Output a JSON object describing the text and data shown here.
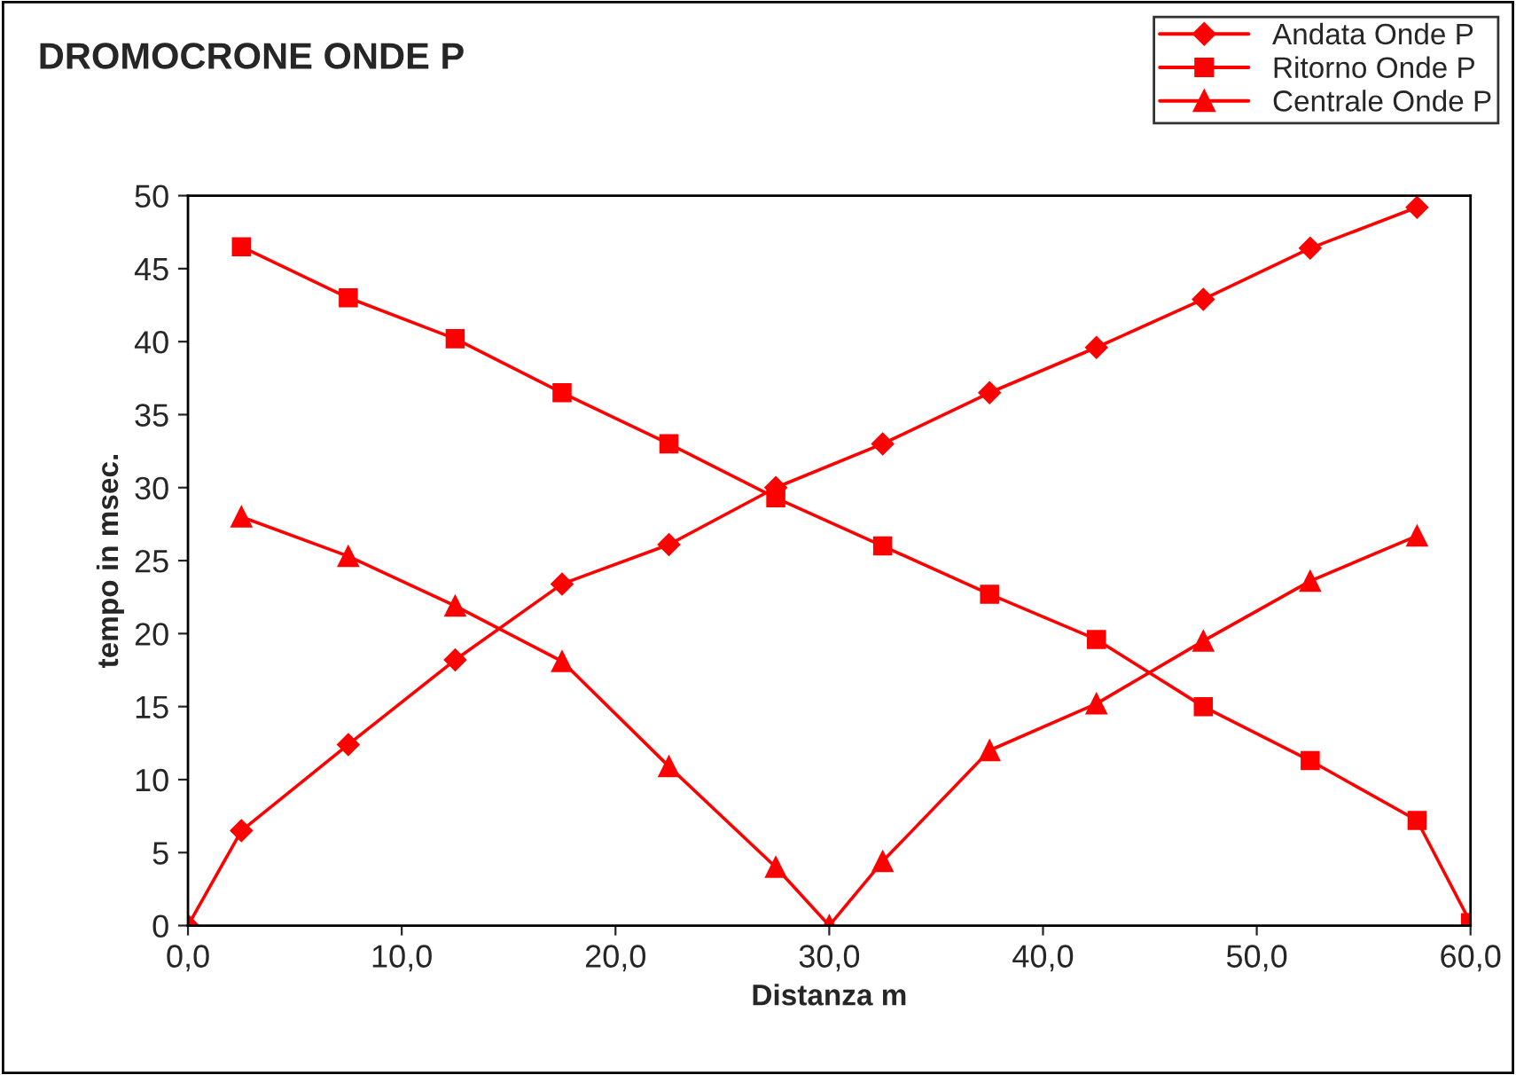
{
  "chart_data": {
    "type": "line",
    "title": "DROMOCRONE ONDE P",
    "xlabel": "Distanza m",
    "ylabel": "tempo in msec.",
    "xlim": [
      0,
      60
    ],
    "xticks": [
      {
        "value": 0,
        "label": "0,0"
      },
      {
        "value": 10,
        "label": "10,0"
      },
      {
        "value": 20,
        "label": "20,0"
      },
      {
        "value": 30,
        "label": "30,0"
      },
      {
        "value": 40,
        "label": "40,0"
      },
      {
        "value": 50,
        "label": "50,0"
      },
      {
        "value": 60,
        "label": "60,0"
      }
    ],
    "ylim": [
      0,
      50
    ],
    "yticks": [
      0,
      5,
      10,
      15,
      20,
      25,
      30,
      35,
      40,
      45,
      50
    ],
    "grid": false,
    "legend": "top right",
    "line_style": "solid",
    "series": [
      {
        "name": "Andata Onde P",
        "color": "#ff0000",
        "marker": "diamond",
        "x": [
          0,
          2.5,
          7.5,
          12.5,
          17.5,
          22.5,
          27.5,
          32.5,
          37.5,
          42.5,
          47.5,
          52.5,
          57.5
        ],
        "values": [
          0,
          6.5,
          12.4,
          18.2,
          23.4,
          26.1,
          30,
          33,
          36.5,
          39.6,
          42.9,
          46.4,
          49.2
        ]
      },
      {
        "name": "Ritorno Onde P",
        "color": "#ff0000",
        "marker": "square",
        "x": [
          2.5,
          7.5,
          12.5,
          17.5,
          22.5,
          27.5,
          32.5,
          37.5,
          42.5,
          47.5,
          52.5,
          57.5,
          60
        ],
        "values": [
          46.5,
          43,
          40.2,
          36.5,
          33,
          29.3,
          26,
          22.7,
          19.6,
          15,
          11.3,
          7.2,
          0.2
        ]
      },
      {
        "name": "Centrale Onde P",
        "color": "#ff0000",
        "marker": "triangle",
        "x": [
          2.5,
          7.5,
          12.5,
          17.5,
          22.5,
          27.5,
          30,
          32.5,
          37.5,
          42.5,
          47.5,
          52.5,
          57.5
        ],
        "values": [
          28,
          25.3,
          21.9,
          18.1,
          10.9,
          4,
          0,
          4.4,
          12,
          15.2,
          19.5,
          23.6,
          26.7
        ]
      }
    ]
  }
}
